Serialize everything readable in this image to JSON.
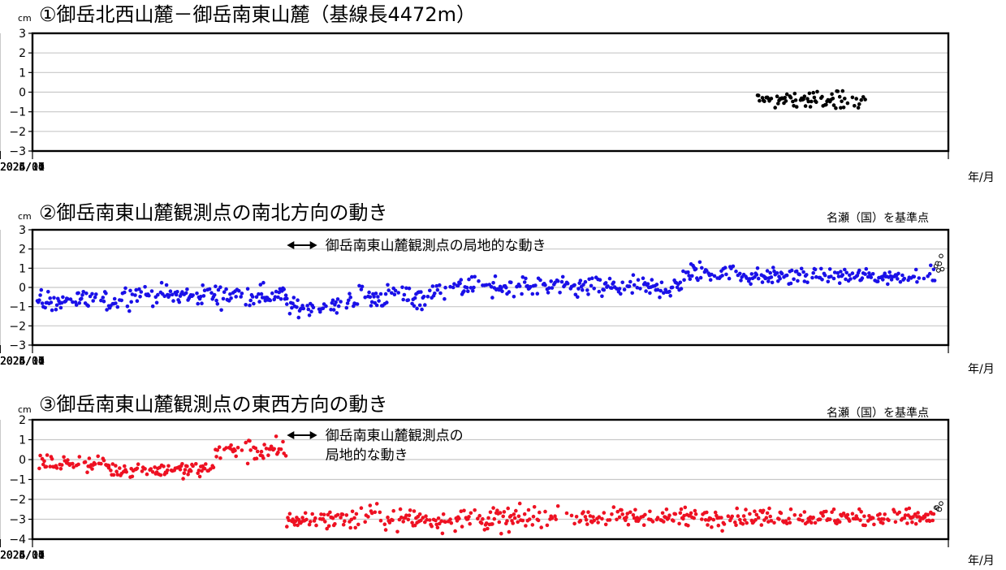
{
  "time_unit_label": "年/月",
  "y_unit": "cm",
  "x_ticks": [
    "2024/01",
    "2024/04",
    "2024/07",
    "2024/10",
    "2025/01",
    "2025/04",
    "2025/07",
    "2025/10",
    "2026/01",
    "2026/04"
  ],
  "colors": {
    "panel1": "#000000",
    "panel2": "#1a10e8",
    "panel3": "#ee1122"
  },
  "chart_data": [
    {
      "type": "scatter",
      "title": "①御岳北西山麓－御岳南東山麓（基線長4472m）",
      "ylabel": "cm",
      "xlabel": "年/月",
      "ylim": [
        -3,
        3
      ],
      "yticks": [
        3,
        2,
        1,
        0,
        -1,
        -2,
        -3
      ],
      "x_range": [
        "2023-11",
        "2026-06"
      ],
      "grid": true,
      "series": [
        {
          "color": "#000000",
          "segments": [
            {
              "start": "2025-11-25",
              "end": "2026-03-15",
              "mean": -0.4,
              "spread": 0.3,
              "marker": "filled"
            }
          ]
        }
      ]
    },
    {
      "type": "scatter",
      "title": "②御岳南東山麓観測点の南北方向の動き",
      "reference": "名瀬（国）を基準点",
      "ylabel": "cm",
      "xlabel": "年/月",
      "ylim": [
        -3,
        3
      ],
      "yticks": [
        3,
        2,
        1,
        0,
        -1,
        -2,
        -3
      ],
      "x_range": [
        "2023-11",
        "2026-06"
      ],
      "grid": true,
      "annotation": {
        "text": "御岳南東山麓観測点の局地的な動き",
        "arrow_from": "2024-08-01",
        "arrow_to": "2024-09-01"
      },
      "series": [
        {
          "color": "#1a10e8",
          "segments": [
            {
              "start": "2023-11-20",
              "end": "2024-02-15",
              "mean": -0.7,
              "spread": 0.35,
              "marker": "filled"
            },
            {
              "start": "2024-02-15",
              "end": "2024-08-01",
              "mean": -0.4,
              "spread": 0.35,
              "marker": "filled"
            },
            {
              "start": "2024-08-01",
              "end": "2024-09-25",
              "mean": -1.0,
              "spread": 0.3,
              "marker": "filled"
            },
            {
              "start": "2024-10-01",
              "end": "2024-12-31",
              "mean": -0.5,
              "spread": 0.4,
              "marker": "filled"
            },
            {
              "start": "2025-01-01",
              "end": "2025-09-10",
              "mean": 0.0,
              "spread": 0.35,
              "marker": "filled"
            },
            {
              "start": "2025-09-10",
              "end": "2025-10-31",
              "mean": 0.8,
              "spread": 0.35,
              "marker": "filled"
            },
            {
              "start": "2025-11-01",
              "end": "2026-05-25",
              "mean": 0.6,
              "spread": 0.25,
              "marker": "filled"
            },
            {
              "start": "2026-05-25",
              "end": "2026-06-03",
              "mean": 1.2,
              "spread": 0.3,
              "marker": "open"
            }
          ]
        }
      ]
    },
    {
      "type": "scatter",
      "title": "③御岳南東山麓観測点の東西方向の動き",
      "reference": "名瀬（国）を基準点",
      "ylabel": "cm",
      "xlabel": "年/月",
      "ylim": [
        -4,
        2
      ],
      "yticks": [
        2,
        1,
        0,
        -1,
        -2,
        -3,
        -4
      ],
      "x_range": [
        "2023-11",
        "2026-06"
      ],
      "grid": true,
      "annotation": {
        "text": "御岳南東山麓観測点の\n局地的な動き",
        "arrow_from": "2024-08-01",
        "arrow_to": "2024-09-01"
      },
      "series": [
        {
          "color": "#ee1122",
          "segments": [
            {
              "start": "2023-11-20",
              "end": "2024-02-01",
              "mean": -0.2,
              "spread": 0.25,
              "marker": "filled"
            },
            {
              "start": "2024-02-01",
              "end": "2024-05-20",
              "mean": -0.5,
              "spread": 0.25,
              "marker": "filled"
            },
            {
              "start": "2024-05-20",
              "end": "2024-07-31",
              "mean": 0.4,
              "spread": 0.4,
              "marker": "filled"
            },
            {
              "start": "2024-08-01",
              "end": "2024-09-30",
              "mean": -3.0,
              "spread": 0.3,
              "marker": "filled"
            },
            {
              "start": "2024-10-01",
              "end": "2025-05-31",
              "mean": -3.0,
              "spread": 0.4,
              "marker": "filled"
            },
            {
              "start": "2025-06-01",
              "end": "2026-05-25",
              "mean": -2.9,
              "spread": 0.3,
              "marker": "filled"
            },
            {
              "start": "2026-05-25",
              "end": "2026-06-03",
              "mean": -2.4,
              "spread": 0.3,
              "marker": "open"
            }
          ]
        }
      ]
    }
  ]
}
